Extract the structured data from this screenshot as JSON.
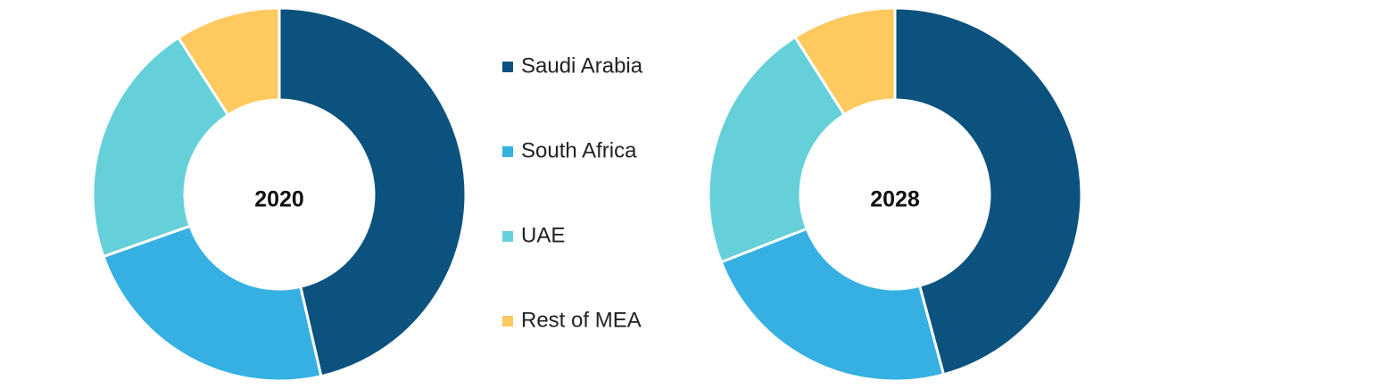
{
  "chart_data": [
    {
      "type": "donut",
      "title": "2020",
      "categories": [
        "Saudi Arabia",
        "South Africa",
        "UAE",
        "Rest of MEA"
      ],
      "values": [
        46.4,
        23.2,
        21.3,
        9.1
      ],
      "colors": [
        "#0b527e",
        "#36b0e2",
        "#66d0da",
        "#fec95f"
      ]
    },
    {
      "type": "donut",
      "title": "2028",
      "categories": [
        "Saudi Arabia",
        "South Africa",
        "UAE",
        "Rest of MEA"
      ],
      "values": [
        45.8,
        23.3,
        21.9,
        9.0
      ],
      "colors": [
        "#0b527e",
        "#36b0e2",
        "#66d0da",
        "#fec95f"
      ]
    }
  ]
}
